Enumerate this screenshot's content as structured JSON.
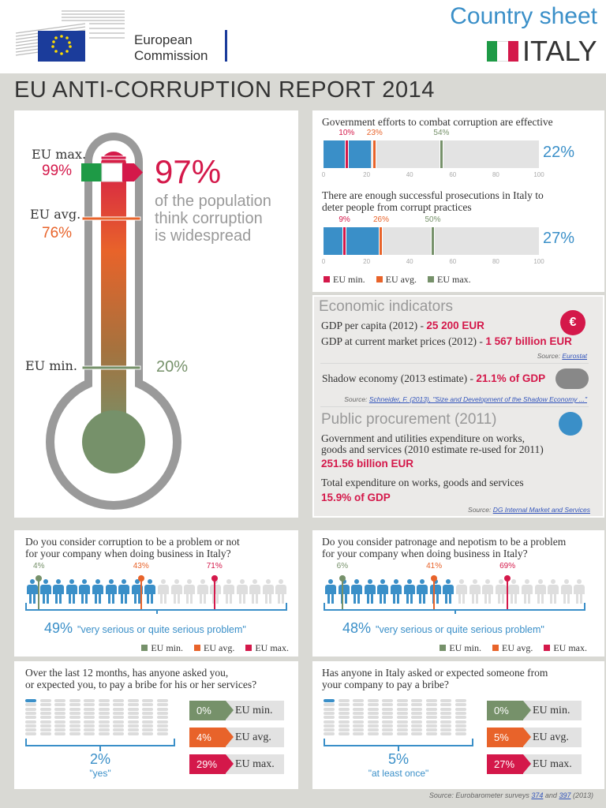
{
  "header": {
    "org_line1": "European",
    "org_line2": "Commission",
    "sheet_label": "Country sheet",
    "country": "ITALY"
  },
  "title": "EU ANTI-CORRUPTION REPORT 2014",
  "colors": {
    "blue": "#3a8fc8",
    "red": "#d4184a",
    "orange": "#e8632a",
    "green": "#76916a"
  },
  "thermometer": {
    "eu_max_label": "EU max.",
    "eu_max_value": "99%",
    "eu_avg_label": "EU avg.",
    "eu_avg_value": "76%",
    "eu_min_label": "EU min.",
    "eu_min_value": "20%",
    "italy_value": "97%",
    "caption_line1": "of the population",
    "caption_line2": "think corruption",
    "caption_line3": "is widespread"
  },
  "bars": {
    "ticks": [
      "0",
      "20",
      "40",
      "60",
      "80",
      "100"
    ],
    "charts": [
      {
        "question": "Government efforts to combat corruption are effective",
        "italy": 22,
        "italy_label": "22%",
        "min": 10,
        "min_label": "10%",
        "avg": 23,
        "avg_label": "23%",
        "max": 54,
        "max_label": "54%"
      },
      {
        "question_line1": "There are enough successful prosecutions in Italy to",
        "question_line2": "deter people from corrupt practices",
        "italy": 27,
        "italy_label": "27%",
        "min": 9,
        "min_label": "9%",
        "avg": 26,
        "avg_label": "26%",
        "max": 50,
        "max_label": "50%"
      }
    ],
    "legend": {
      "min": "EU min.",
      "avg": "EU avg.",
      "max": "EU max."
    }
  },
  "economic": {
    "heading": "Economic indicators",
    "gdp_capita_label": "GDP per capita (2012) - ",
    "gdp_capita_value": "25 200 EUR",
    "gdp_label": "GDP at current market prices (2012) - ",
    "gdp_value": "1 567 billion EUR",
    "source1_prefix": "Source: ",
    "source1_link": "Eurostat",
    "shadow_label": "Shadow economy (2013 estimate) - ",
    "shadow_value": "21.1% of GDP",
    "source2_prefix": "Source: ",
    "source2_link": "Schneider, F. (2013), \"Size and Development of the Shadow Economy ...\"",
    "procurement_heading": "Public procurement (2011)",
    "gov_exp_line1": "Government and utilities expenditure on works,",
    "gov_exp_line2": "goods and services (2010 estimate re-used for 2011)",
    "gov_exp_value": "251.56 billion EUR",
    "total_exp_label": "Total expenditure on works, goods and services",
    "total_exp_value": "15.9% of GDP",
    "source3_prefix": "Source: ",
    "source3_link": "DG Internal Market and Services"
  },
  "people": [
    {
      "question_line1": "Do you consider corruption to be a problem or not",
      "question_line2": "for your company when doing business in Italy?",
      "italy": 49,
      "italy_label": "49%",
      "caption": "\"very serious or quite serious problem\"",
      "min": 4,
      "min_label": "4%",
      "avg": 43,
      "avg_label": "43%",
      "max": 71,
      "max_label": "71%"
    },
    {
      "question_line1": "Do you consider patronage and nepotism to be a problem",
      "question_line2": "for your company when doing business in Italy?",
      "italy": 48,
      "italy_label": "48%",
      "caption": "\"very serious or quite serious problem\"",
      "min": 6,
      "min_label": "6%",
      "avg": 41,
      "avg_label": "41%",
      "max": 69,
      "max_label": "69%"
    }
  ],
  "people_legend": {
    "min": "EU min.",
    "avg": "EU avg.",
    "max": "EU max."
  },
  "bribes": [
    {
      "question_line1": "Over the last 12 months, has anyone asked you,",
      "question_line2": "or expected you, to pay a bribe for his or her services?",
      "italy": 2,
      "italy_label": "2%",
      "caption": "\"yes\"",
      "min_value": "0%",
      "avg_value": "4%",
      "max_value": "29%",
      "min_label": "EU min.",
      "avg_label": "EU avg.",
      "max_label": "EU max."
    },
    {
      "question_line1": "Has anyone in Italy asked or expected someone from",
      "question_line2": "your company to pay a bribe?",
      "italy": 5,
      "italy_label": "5%",
      "caption": "\"at least once\"",
      "min_value": "0%",
      "avg_value": "5%",
      "max_value": "27%",
      "min_label": "EU min.",
      "avg_label": "EU avg.",
      "max_label": "EU max."
    }
  ],
  "footer": {
    "prefix": "Source: Eurobarometer surveys ",
    "link1": "374",
    "and": " and ",
    "link2": "397",
    "suffix": " (2013)"
  }
}
